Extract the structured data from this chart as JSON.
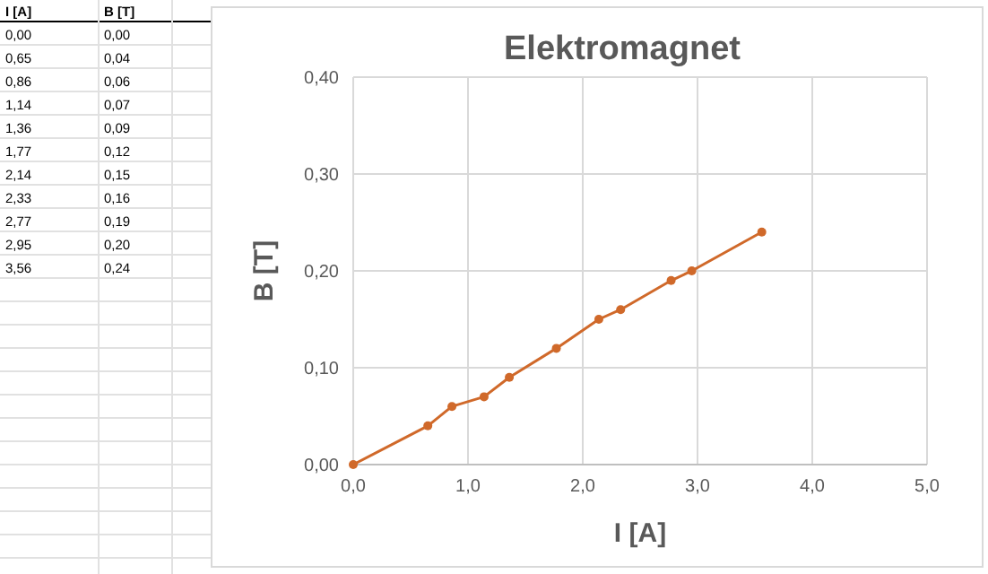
{
  "chart_data": [
    {
      "type": "other",
      "annotations": [
        "I [A]",
        "B [T]",
        "0,00",
        "0,00",
        "0,65",
        "0,04",
        "0,86",
        "0,06",
        "1,14",
        "0,07",
        "1,36",
        "0,09",
        "1,77",
        "0,12",
        "2,14",
        "0,15",
        "2,33",
        "0,16",
        "2,77",
        "0,19",
        "2,95",
        "0,20",
        "3,56",
        "0,24"
      ]
    },
    {
      "type": "line",
      "title": "Elektromagnet",
      "xlabel": "I [A]",
      "ylabel": "B [T]",
      "x": [
        0,
        0.65,
        0.86,
        1.14,
        1.36,
        1.77,
        2.14,
        2.33,
        2.77,
        2.95,
        3.56
      ],
      "series": [
        {
          "color": "#d0692a",
          "values": [
            0,
            0.04,
            0.06,
            0.07,
            0.09,
            0.12,
            0.15,
            0.16,
            0.19,
            0.2,
            0.24
          ]
        }
      ],
      "xlim": [
        0,
        5
      ],
      "xticks": [
        {
          "value": 0,
          "label": "0,0"
        },
        {
          "value": 1,
          "label": "1,0"
        },
        {
          "value": 2,
          "label": "2,0"
        },
        {
          "value": 3,
          "label": "3,0"
        },
        {
          "value": 4,
          "label": "4,0"
        },
        {
          "value": 5,
          "label": "5,0"
        }
      ],
      "ylim": [
        0,
        0.4
      ],
      "yticks": [
        {
          "value": 0,
          "label": "0,00"
        },
        {
          "value": 0.1,
          "label": "0,10"
        },
        {
          "value": 0.2,
          "label": "0,20"
        },
        {
          "value": 0.3,
          "label": "0,30"
        },
        {
          "value": 0.4,
          "label": "0,40"
        }
      ],
      "grid": true,
      "marker": "circle",
      "line_style": "solid"
    }
  ]
}
